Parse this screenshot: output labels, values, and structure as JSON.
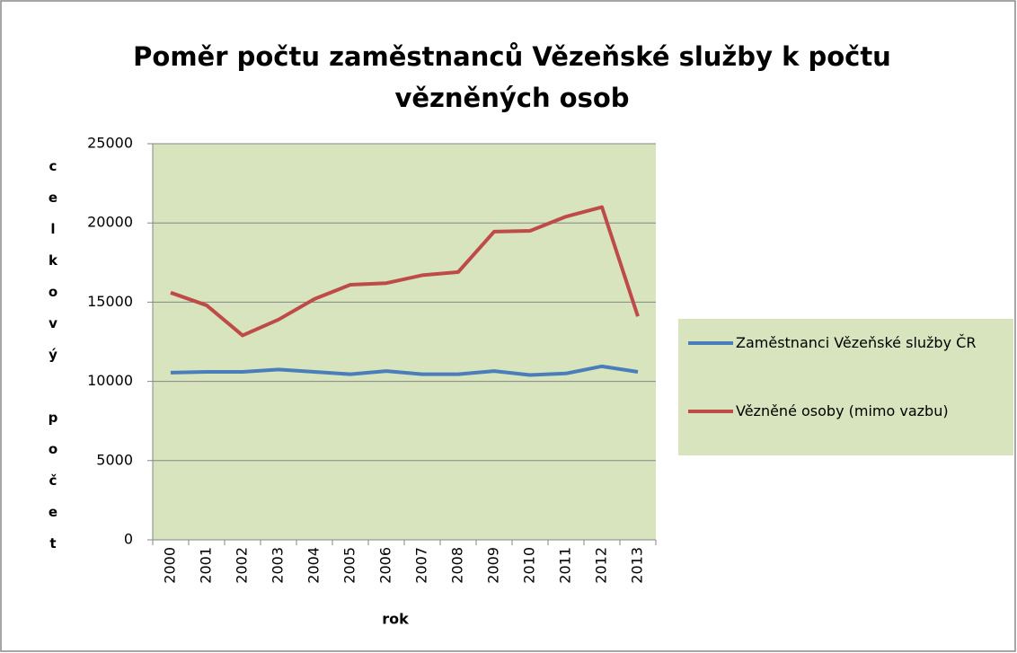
{
  "chart_data": {
    "type": "line",
    "title": "Poměr počtu zaměstnanců Vězeňské služby k počtu vězněných osob",
    "xlabel": "rok",
    "ylabel": "celkový počet",
    "categories": [
      "2000",
      "2001",
      "2002",
      "2003",
      "2004",
      "2005",
      "2006",
      "2007",
      "2008",
      "2009",
      "2010",
      "2011",
      "2012",
      "2013"
    ],
    "series": [
      {
        "name": "Zaměstnanci Vězeňské služby ČR",
        "color": "#4a7ebb",
        "values": [
          10550,
          10600,
          10600,
          10750,
          10600,
          10450,
          10650,
          10450,
          10450,
          10650,
          10400,
          10500,
          10950,
          10600
        ]
      },
      {
        "name": "Vězněné osoby (mimo vazbu)",
        "color": "#be4b48",
        "values": [
          15600,
          14800,
          12900,
          13900,
          15200,
          16100,
          16200,
          16700,
          16900,
          19450,
          19500,
          20400,
          21000,
          14100
        ]
      }
    ],
    "ylim": [
      0,
      25000
    ],
    "yticks": [
      0,
      5000,
      10000,
      15000,
      20000,
      25000
    ],
    "grid": true,
    "legend": "right"
  }
}
